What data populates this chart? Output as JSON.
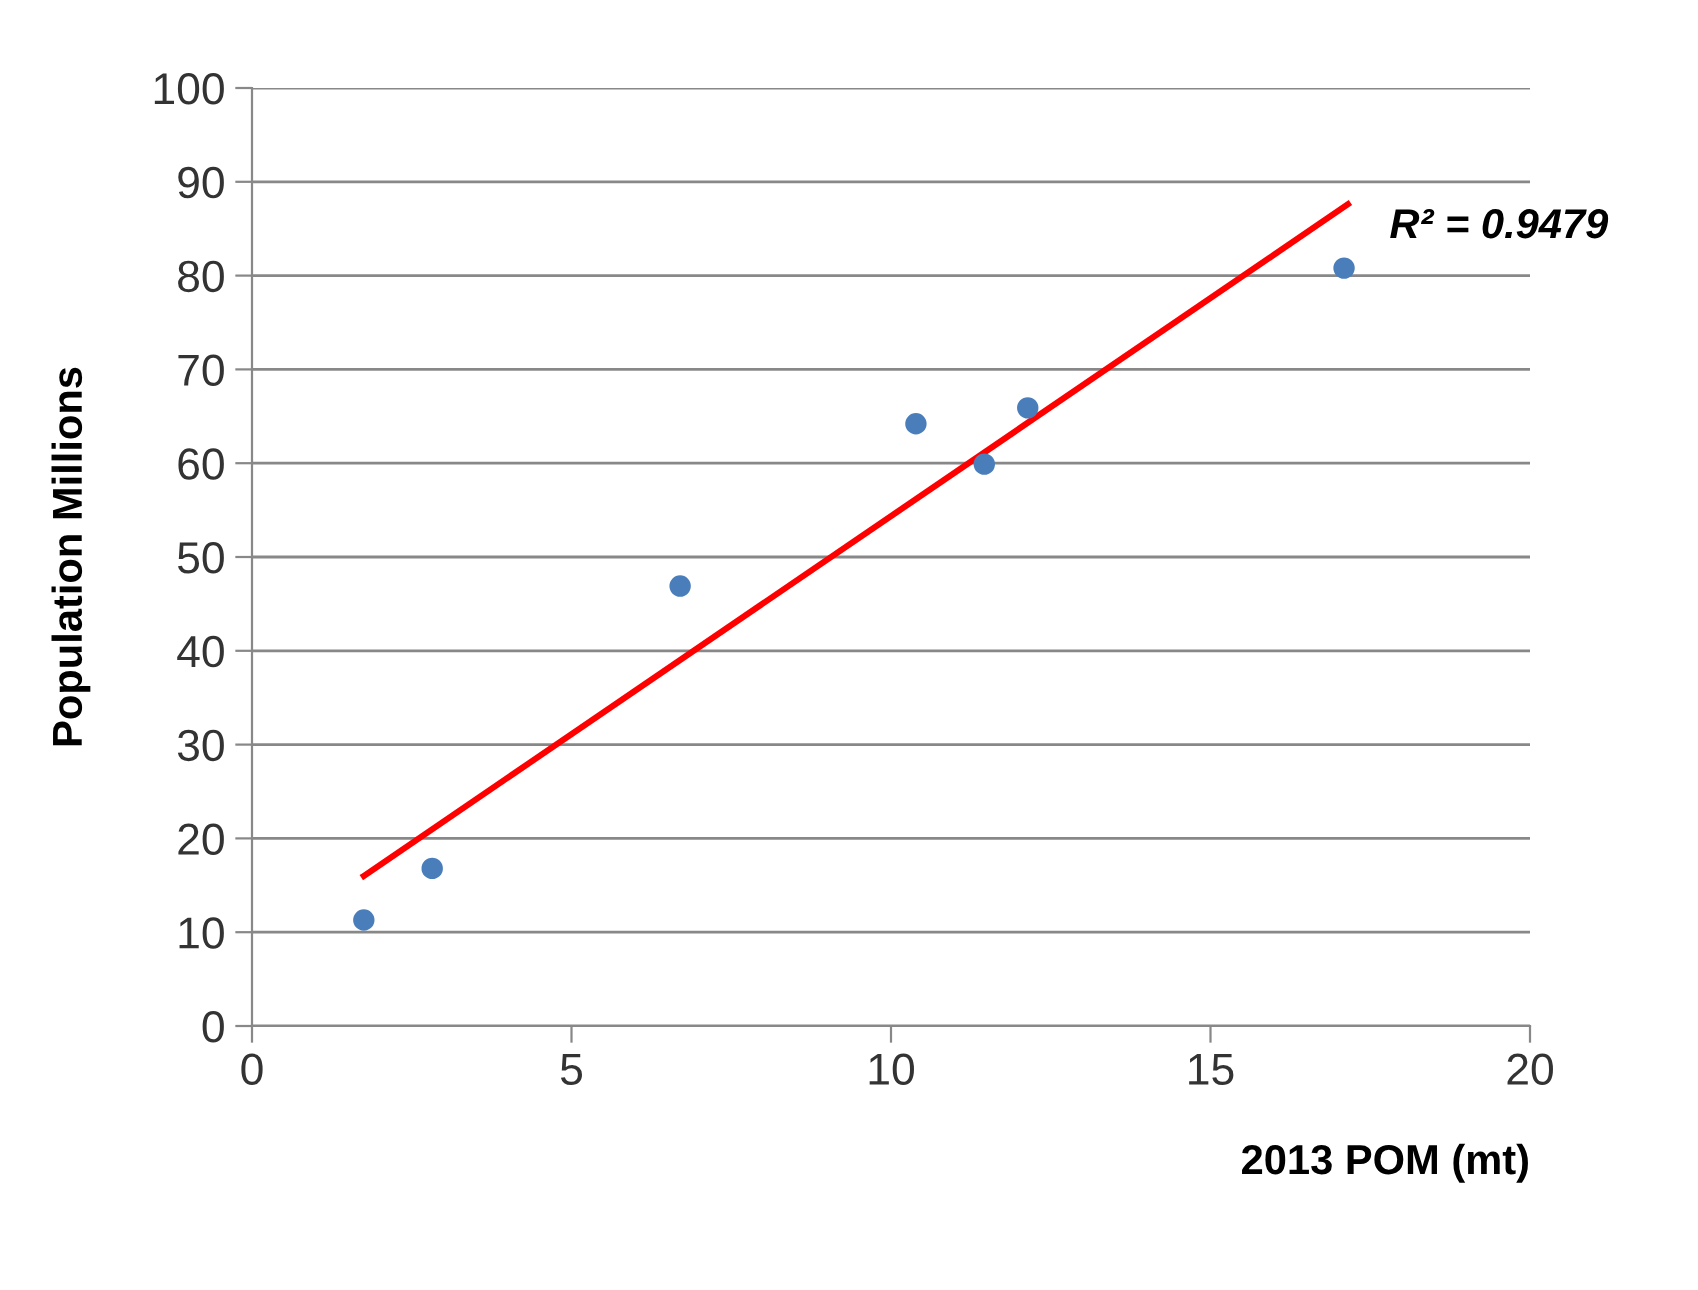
{
  "chart_data": {
    "type": "scatter",
    "xlabel": "2013 POM (mt)",
    "ylabel": "Population Millions",
    "x": [
      1.75,
      2.82,
      6.7,
      10.39,
      11.46,
      12.14,
      17.09
    ],
    "series": [
      {
        "color": "#4a7ebb",
        "marker": "circle",
        "values": [
          11.3,
          16.8,
          46.9,
          64.2,
          59.9,
          65.9,
          80.8
        ]
      },
      {
        "type": "line",
        "color": "#ff0000",
        "marker": "none",
        "line_style": "solid",
        "x": [
          1.75,
          17.15
        ],
        "values": [
          16.0,
          87.6
        ]
      }
    ],
    "annotations": [
      "R² = 0.9479"
    ],
    "xlim": [
      0,
      20
    ],
    "xticks": [
      0,
      5,
      10,
      15,
      20
    ],
    "ylim": [
      0,
      100
    ],
    "yticks": [
      0,
      10,
      20,
      30,
      40,
      50,
      60,
      70,
      80,
      90,
      100
    ],
    "grid": "y",
    "legend": false
  }
}
